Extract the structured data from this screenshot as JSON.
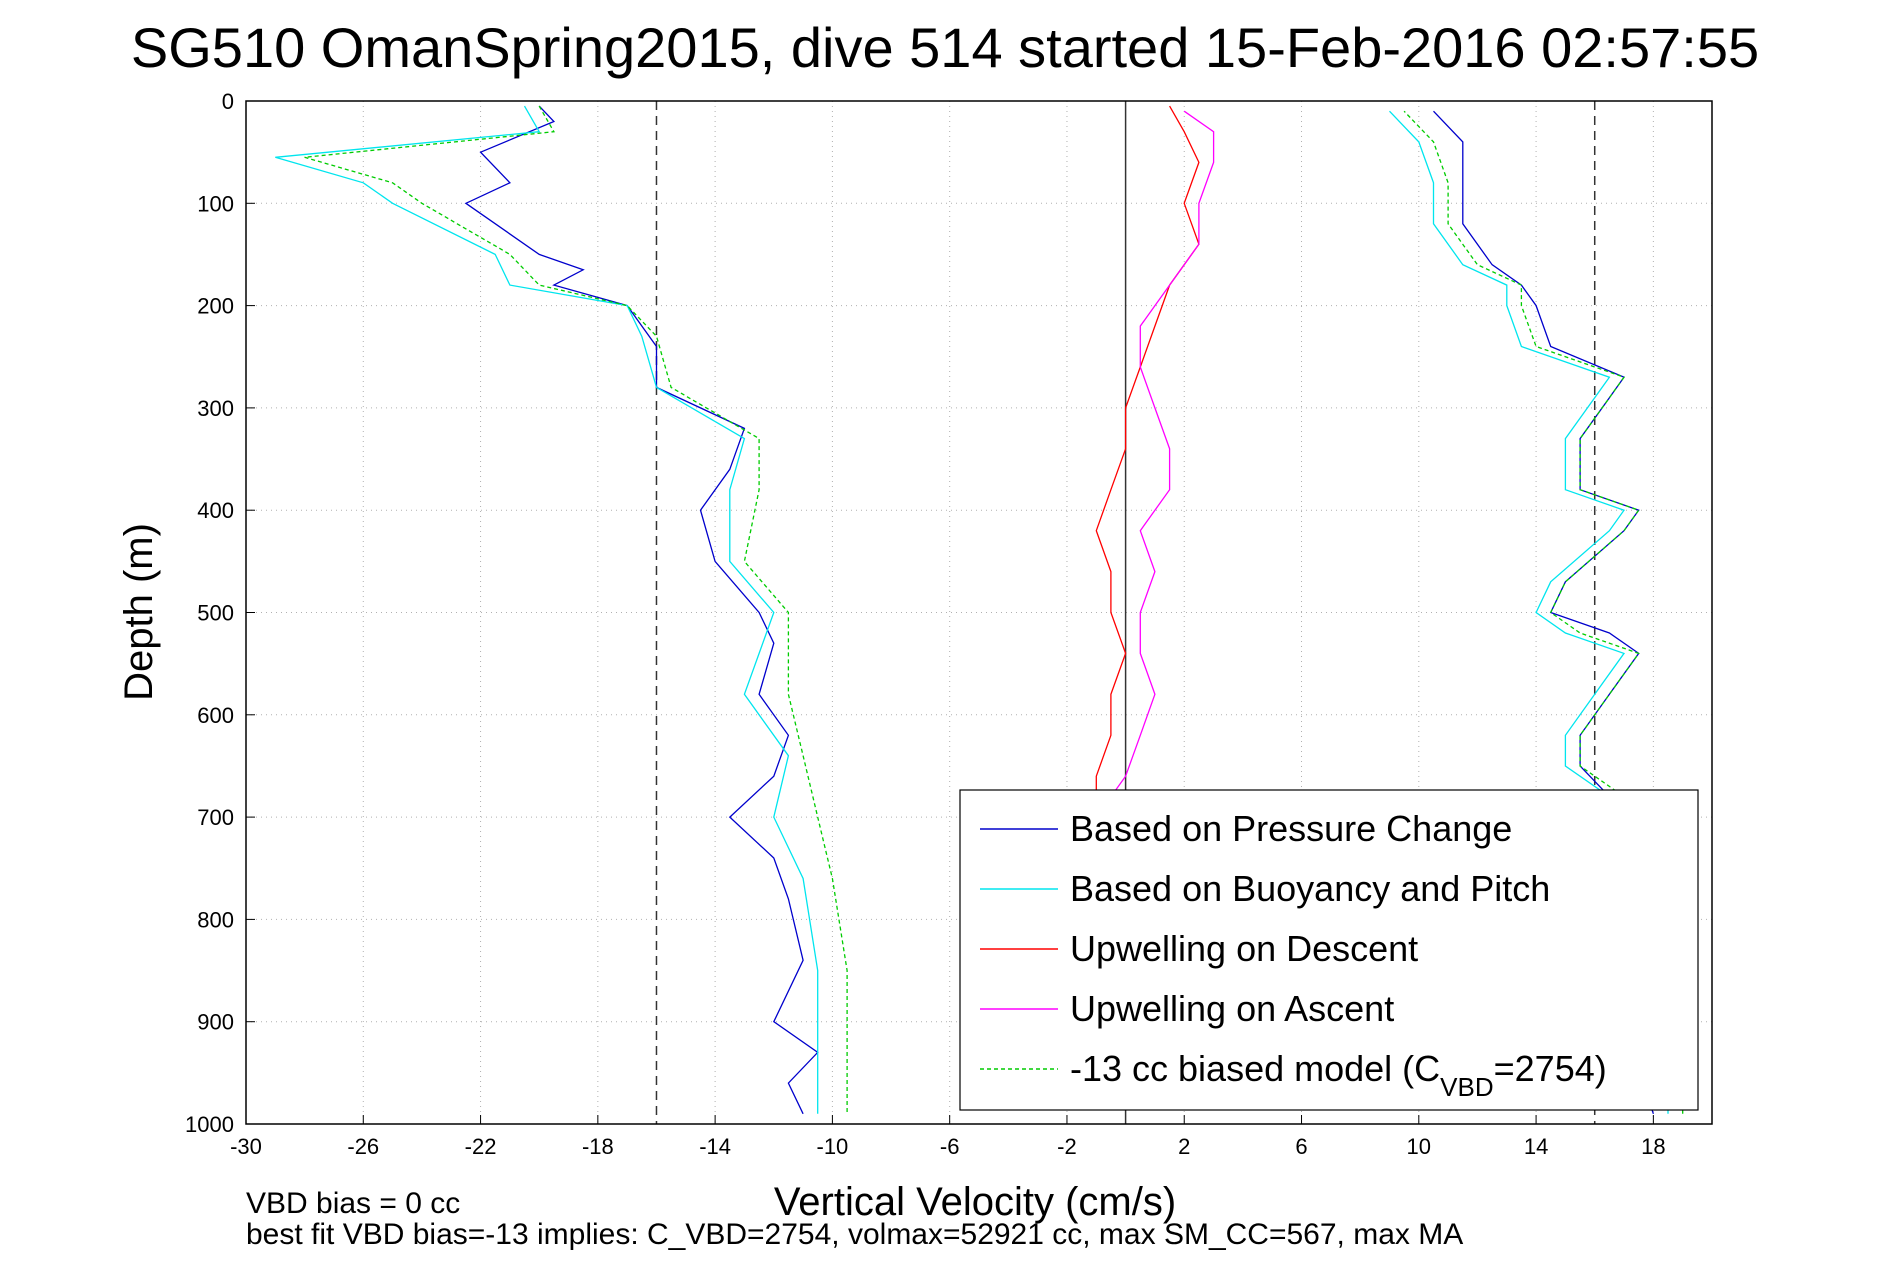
{
  "chart_data": {
    "type": "line",
    "title": "SG510 OmanSpring2015, dive 514 started 15-Feb-2016 02:57:55",
    "xlabel": "Vertical Velocity (cm/s)",
    "ylabel": "Depth (m)",
    "xlim": [
      -30,
      20
    ],
    "ylim": [
      1000,
      0
    ],
    "y_reversed": true,
    "grid": "dotted",
    "x_ticks": [
      "-30",
      "-26",
      "-22",
      "-18",
      "-14",
      "-10",
      "-6",
      "-2",
      "2",
      "6",
      "10",
      "14",
      "18"
    ],
    "y_ticks": [
      "0",
      "100",
      "200",
      "300",
      "400",
      "500",
      "600",
      "700",
      "800",
      "900",
      "1000"
    ],
    "reference_lines": [
      {
        "x": -16,
        "style": "dashed"
      },
      {
        "x": 16,
        "style": "dashed"
      },
      {
        "x": 0,
        "style": "solid"
      }
    ],
    "legend_position": "bottom-right",
    "legend": [
      {
        "label": "Based on Pressure Change",
        "color": "#0000cc",
        "dash": false
      },
      {
        "label": "Based on Buoyancy and Pitch",
        "color": "#00e5ee",
        "dash": false
      },
      {
        "label": "Upwelling on Descent",
        "color": "#ff0000",
        "dash": false
      },
      {
        "label": "Upwelling on Ascent",
        "color": "#ff00ff",
        "dash": false
      },
      {
        "label": "-13 cc biased model (C",
        "sub": "VBD",
        "tail": "=2754)",
        "color": "#00cc00",
        "dash": true
      }
    ],
    "series": [
      {
        "key": "descent_pressure",
        "color": "#0000cc",
        "depth": [
          5,
          20,
          50,
          80,
          100,
          150,
          165,
          180,
          200,
          240,
          280,
          320,
          360,
          400,
          450,
          500,
          530,
          580,
          620,
          660,
          700,
          740,
          780,
          840,
          900,
          930,
          960,
          990
        ],
        "velocity": [
          -20,
          -19.5,
          -22,
          -21,
          -22.5,
          -20,
          -18.5,
          -19.5,
          -17,
          -16,
          -16,
          -13,
          -13.5,
          -14.5,
          -14,
          -12.5,
          -12,
          -12.5,
          -11.5,
          -12,
          -13.5,
          -12,
          -11.5,
          -11,
          -12,
          -10.5,
          -11.5,
          -11
        ]
      },
      {
        "key": "descent_buoyancy",
        "color": "#00e5ee",
        "depth": [
          5,
          30,
          55,
          80,
          100,
          150,
          180,
          200,
          230,
          280,
          330,
          380,
          450,
          500,
          580,
          640,
          700,
          760,
          850,
          940,
          990
        ],
        "velocity": [
          -20.5,
          -20,
          -29,
          -26,
          -25,
          -21.5,
          -21,
          -17,
          -16.5,
          -16,
          -13,
          -13.5,
          -13.5,
          -12,
          -13,
          -11.5,
          -12,
          -11,
          -10.5,
          -10.5,
          -10.5
        ]
      },
      {
        "key": "descent_model",
        "color": "#00cc00",
        "dash": true,
        "depth": [
          5,
          30,
          55,
          80,
          100,
          150,
          180,
          200,
          230,
          280,
          330,
          380,
          450,
          500,
          580,
          640,
          700,
          760,
          850,
          940,
          990
        ],
        "velocity": [
          -20,
          -19.5,
          -28,
          -25,
          -24,
          -21,
          -20,
          -17,
          -16,
          -15.5,
          -12.5,
          -12.5,
          -13,
          -11.5,
          -11.5,
          -11,
          -10.5,
          -10,
          -9.5,
          -9.5,
          -9.5
        ]
      },
      {
        "key": "ascent_pressure",
        "color": "#0000cc",
        "depth": [
          990,
          950,
          900,
          850,
          800,
          760,
          720,
          680,
          650,
          620,
          580,
          540,
          520,
          500,
          470,
          420,
          400,
          380,
          330,
          290,
          270,
          240,
          200,
          180,
          160,
          120,
          80,
          40,
          10
        ],
        "velocity": [
          18,
          17.5,
          17,
          17,
          16.5,
          16.5,
          16,
          16.5,
          15.5,
          15.5,
          16.5,
          17.5,
          16.5,
          14.5,
          15,
          17,
          17.5,
          15.5,
          15.5,
          16.5,
          17,
          14.5,
          14,
          13.5,
          12.5,
          11.5,
          11.5,
          11.5,
          10.5
        ]
      },
      {
        "key": "ascent_buoyancy",
        "color": "#00e5ee",
        "depth": [
          990,
          950,
          900,
          850,
          800,
          760,
          720,
          680,
          650,
          620,
          580,
          540,
          520,
          500,
          470,
          420,
          400,
          380,
          330,
          290,
          270,
          240,
          200,
          180,
          160,
          120,
          80,
          40,
          10
        ],
        "velocity": [
          18.5,
          18.5,
          18,
          18,
          17.5,
          17,
          16.5,
          16.5,
          15,
          15,
          16,
          17,
          15,
          14,
          14.5,
          16.5,
          17,
          15,
          15,
          16,
          16.5,
          13.5,
          13,
          13,
          11.5,
          10.5,
          10.5,
          10,
          9
        ]
      },
      {
        "key": "ascent_model",
        "color": "#00cc00",
        "dash": true,
        "depth": [
          990,
          950,
          900,
          850,
          800,
          760,
          720,
          680,
          650,
          620,
          580,
          540,
          520,
          500,
          470,
          420,
          400,
          380,
          330,
          290,
          270,
          240,
          200,
          180,
          160,
          120,
          80,
          40,
          10
        ],
        "velocity": [
          19,
          19,
          18.5,
          18.5,
          18,
          17.5,
          17,
          17,
          15.5,
          15.5,
          16.5,
          17.5,
          15.5,
          14.5,
          15,
          17,
          17.5,
          15.5,
          15.5,
          16.5,
          17,
          14,
          13.5,
          13.5,
          12,
          11,
          11,
          10.5,
          9.5
        ]
      },
      {
        "key": "upwelling_descent",
        "color": "#ff0000",
        "depth": [
          5,
          30,
          60,
          100,
          140,
          180,
          220,
          260,
          300,
          340,
          380,
          420,
          460,
          500,
          540,
          580,
          620,
          660,
          700,
          740,
          780,
          820,
          860,
          900,
          940,
          980
        ],
        "velocity": [
          1.5,
          2,
          2.5,
          2,
          2.5,
          1.5,
          1,
          0.5,
          0,
          0,
          -0.5,
          -1,
          -0.5,
          -0.5,
          0,
          -0.5,
          -0.5,
          -1,
          -1,
          -1.5,
          -1.5,
          -1,
          -0.5,
          -1,
          -1,
          -1
        ]
      },
      {
        "key": "upwelling_ascent",
        "color": "#ff00ff",
        "depth": [
          980,
          900,
          800,
          700,
          660,
          620,
          580,
          540,
          500,
          460,
          420,
          380,
          340,
          300,
          260,
          220,
          180,
          140,
          100,
          60,
          30,
          10
        ],
        "velocity": [
          -1,
          -1,
          -1.5,
          -1,
          0,
          0.5,
          1,
          0.5,
          0.5,
          1,
          0.5,
          1.5,
          1.5,
          1,
          0.5,
          0.5,
          1.5,
          2.5,
          2.5,
          3,
          3,
          2
        ]
      }
    ]
  },
  "footer": {
    "line1": "VBD bias = 0 cc",
    "line2": "best fit VBD bias=-13 implies: C_VBD=2754, volmax=52921 cc, max SM_CC=567, max MA"
  }
}
